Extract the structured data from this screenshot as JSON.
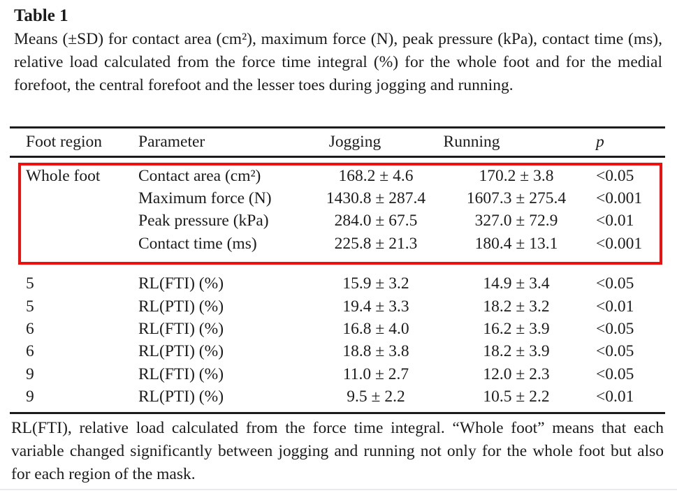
{
  "caption": {
    "label": "Table 1",
    "text": "Means (±SD) for contact area (cm²), maximum force (N), peak pressure (kPa), contact time (ms), relative load calculated from the force time integral (%) for the whole foot and for the medial forefoot, the central forefoot and the lesser toes during jogging and running."
  },
  "table": {
    "columns": [
      "Foot region",
      "Parameter",
      "Jogging",
      "Running",
      "p"
    ],
    "highlight_color": "#ee0f0f",
    "rows": [
      {
        "region": "Whole foot",
        "parameter": "Contact area (cm²)",
        "jogging": "168.2 ± 4.6",
        "running": "170.2 ± 3.8",
        "p": "<0.05"
      },
      {
        "region": "",
        "parameter": "Maximum force (N)",
        "jogging": "1430.8 ± 287.4",
        "running": "1607.3 ± 275.4",
        "p": "<0.001"
      },
      {
        "region": "",
        "parameter": "Peak pressure (kPa)",
        "jogging": "284.0 ± 67.5",
        "running": "327.0 ± 72.9",
        "p": "<0.01"
      },
      {
        "region": "",
        "parameter": "Contact time (ms)",
        "jogging": "225.8 ± 21.3",
        "running": "180.4 ± 13.1",
        "p": "<0.001"
      },
      {
        "region": "5",
        "parameter": "RL(FTI) (%)",
        "jogging": "15.9 ± 3.2",
        "running": "14.9 ± 3.4",
        "p": "<0.05"
      },
      {
        "region": "5",
        "parameter": "RL(PTI) (%)",
        "jogging": "19.4 ± 3.3",
        "running": "18.2 ± 3.2",
        "p": "<0.01"
      },
      {
        "region": "6",
        "parameter": "RL(FTI) (%)",
        "jogging": "16.8 ± 4.0",
        "running": "16.2 ± 3.9",
        "p": "<0.05"
      },
      {
        "region": "6",
        "parameter": "RL(PTI) (%)",
        "jogging": "18.8 ± 3.8",
        "running": "18.2 ± 3.9",
        "p": "<0.05"
      },
      {
        "region": "9",
        "parameter": "RL(FTI) (%)",
        "jogging": "11.0 ± 2.7",
        "running": "12.0 ± 2.3",
        "p": "<0.05"
      },
      {
        "region": "9",
        "parameter": "RL(PTI) (%)",
        "jogging": "9.5 ± 2.2",
        "running": "10.5 ± 2.2",
        "p": "<0.01"
      }
    ]
  },
  "footnote": "RL(FTI), relative load calculated from the force time integral. “Whole foot” means that each variable changed significantly between jogging and running not only for the whole foot but also for each region of the mask."
}
